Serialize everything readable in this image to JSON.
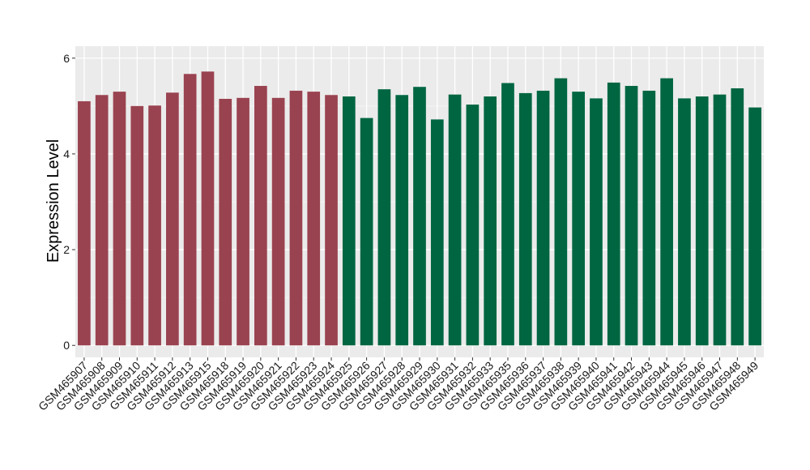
{
  "chart_data": {
    "type": "bar",
    "ylabel": "Expression Level",
    "xlabel": "",
    "title": "",
    "ylim": [
      -0.25,
      6.25
    ],
    "y_ticks": [
      0,
      2,
      4,
      6
    ],
    "y_tick_labels": [
      "0",
      "2",
      "4",
      "6"
    ],
    "grid": true,
    "legend": "none",
    "background": "#ebebeb",
    "group_colors": {
      "group1": "#9a4350",
      "group2": "#006642"
    },
    "categories": [
      "GSM465907",
      "GSM465908",
      "GSM465909",
      "GSM465910",
      "GSM465911",
      "GSM465912",
      "GSM465913",
      "GSM465915",
      "GSM465918",
      "GSM465919",
      "GSM465920",
      "GSM465921",
      "GSM465922",
      "GSM465923",
      "GSM465924",
      "GSM465925",
      "GSM465926",
      "GSM465927",
      "GSM465928",
      "GSM465929",
      "GSM465930",
      "GSM465931",
      "GSM465932",
      "GSM465933",
      "GSM465935",
      "GSM465936",
      "GSM465937",
      "GSM465938",
      "GSM465939",
      "GSM465940",
      "GSM465941",
      "GSM465942",
      "GSM465943",
      "GSM465944",
      "GSM465945",
      "GSM465946",
      "GSM465947",
      "GSM465948",
      "GSM465949"
    ],
    "values": [
      5.1,
      5.23,
      5.3,
      5.0,
      5.01,
      5.28,
      5.67,
      5.72,
      5.15,
      5.17,
      5.42,
      5.17,
      5.32,
      5.3,
      5.23,
      5.2,
      4.75,
      5.35,
      5.23,
      5.4,
      4.72,
      5.24,
      5.03,
      5.2,
      5.48,
      5.27,
      5.32,
      5.58,
      5.3,
      5.16,
      5.49,
      5.42,
      5.32,
      5.58,
      5.16,
      5.2,
      5.24,
      5.37,
      4.97
    ],
    "groups": [
      "group1",
      "group1",
      "group1",
      "group1",
      "group1",
      "group1",
      "group1",
      "group1",
      "group1",
      "group1",
      "group1",
      "group1",
      "group1",
      "group1",
      "group1",
      "group2",
      "group2",
      "group2",
      "group2",
      "group2",
      "group2",
      "group2",
      "group2",
      "group2",
      "group2",
      "group2",
      "group2",
      "group2",
      "group2",
      "group2",
      "group2",
      "group2",
      "group2",
      "group2",
      "group2",
      "group2",
      "group2",
      "group2",
      "group2"
    ]
  }
}
